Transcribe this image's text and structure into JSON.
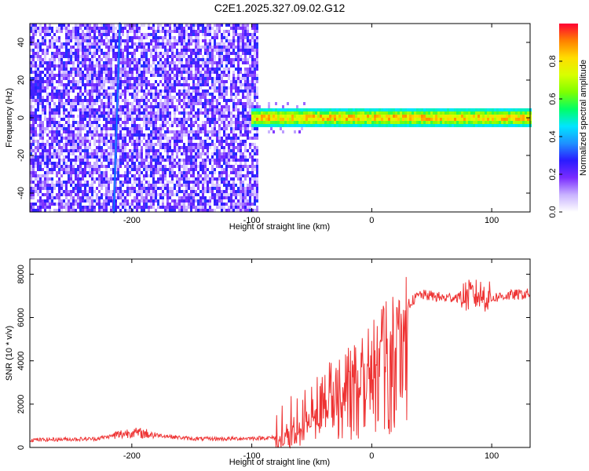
{
  "title": "C2E1.2025.327.09.02.G12",
  "chart_data": [
    {
      "type": "heatmap",
      "xlabel": "Height of straight line (km)",
      "ylabel": "Frequency (Hz)",
      "xlim": [
        -285,
        132
      ],
      "ylim": [
        -50,
        50
      ],
      "xticks": [
        -200,
        -100,
        0,
        100
      ],
      "yticks": [
        -40,
        -20,
        0,
        20,
        40
      ],
      "colorbar": {
        "label": "Normalized spectral amplitude",
        "range": [
          0,
          1
        ],
        "ticks": [
          0.0,
          0.2,
          0.4,
          0.6,
          0.8
        ],
        "tick_labels": [
          "0.0",
          "0.2",
          "0.4",
          "0.6",
          "0.8"
        ],
        "colormap": [
          "#ffffff",
          "#c9b3ff",
          "#7a2cff",
          "#2a1bff",
          "#1e90ff",
          "#00e5ff",
          "#00ff66",
          "#7fff00",
          "#d8ff00",
          "#ffdd00",
          "#ff8000",
          "#ff0033"
        ]
      },
      "regions": [
        {
          "name": "noise",
          "x_range": [
            -285,
            -95
          ],
          "y_range": [
            -50,
            50
          ],
          "amplitude": [
            0.05,
            0.3
          ]
        },
        {
          "name": "signal",
          "x_range": [
            -100,
            132
          ],
          "center_hz": 0,
          "half_width_hz": 5,
          "amplitude": [
            0.4,
            1.0
          ]
        }
      ],
      "streak": {
        "x_start": -215,
        "y_start": -50,
        "x_end": -210,
        "y_end": 50
      }
    },
    {
      "type": "line",
      "xlabel": "Height of straight line (km)",
      "ylabel": "SNR (10 * v/v)",
      "xlim": [
        -285,
        132
      ],
      "ylim": [
        0,
        8700
      ],
      "xticks": [
        -200,
        -100,
        0,
        100
      ],
      "yticks": [
        0,
        2000,
        4000,
        6000,
        8000
      ],
      "series": [
        {
          "color": "#ee3333",
          "x": [
            -285,
            -230,
            -200,
            -150,
            -120,
            -80,
            -70,
            -60,
            -50,
            -40,
            -30,
            -20,
            -10,
            0,
            10,
            20,
            30,
            40,
            50,
            60,
            70,
            80,
            90,
            100,
            110,
            120,
            132
          ],
          "y": [
            350,
            400,
            700,
            400,
            400,
            450,
            900,
            1300,
            1700,
            2200,
            2700,
            3100,
            3700,
            4300,
            5100,
            5900,
            6600,
            7050,
            7000,
            6900,
            6950,
            7000,
            7050,
            6900,
            7000,
            7050,
            7100
          ]
        }
      ]
    }
  ]
}
